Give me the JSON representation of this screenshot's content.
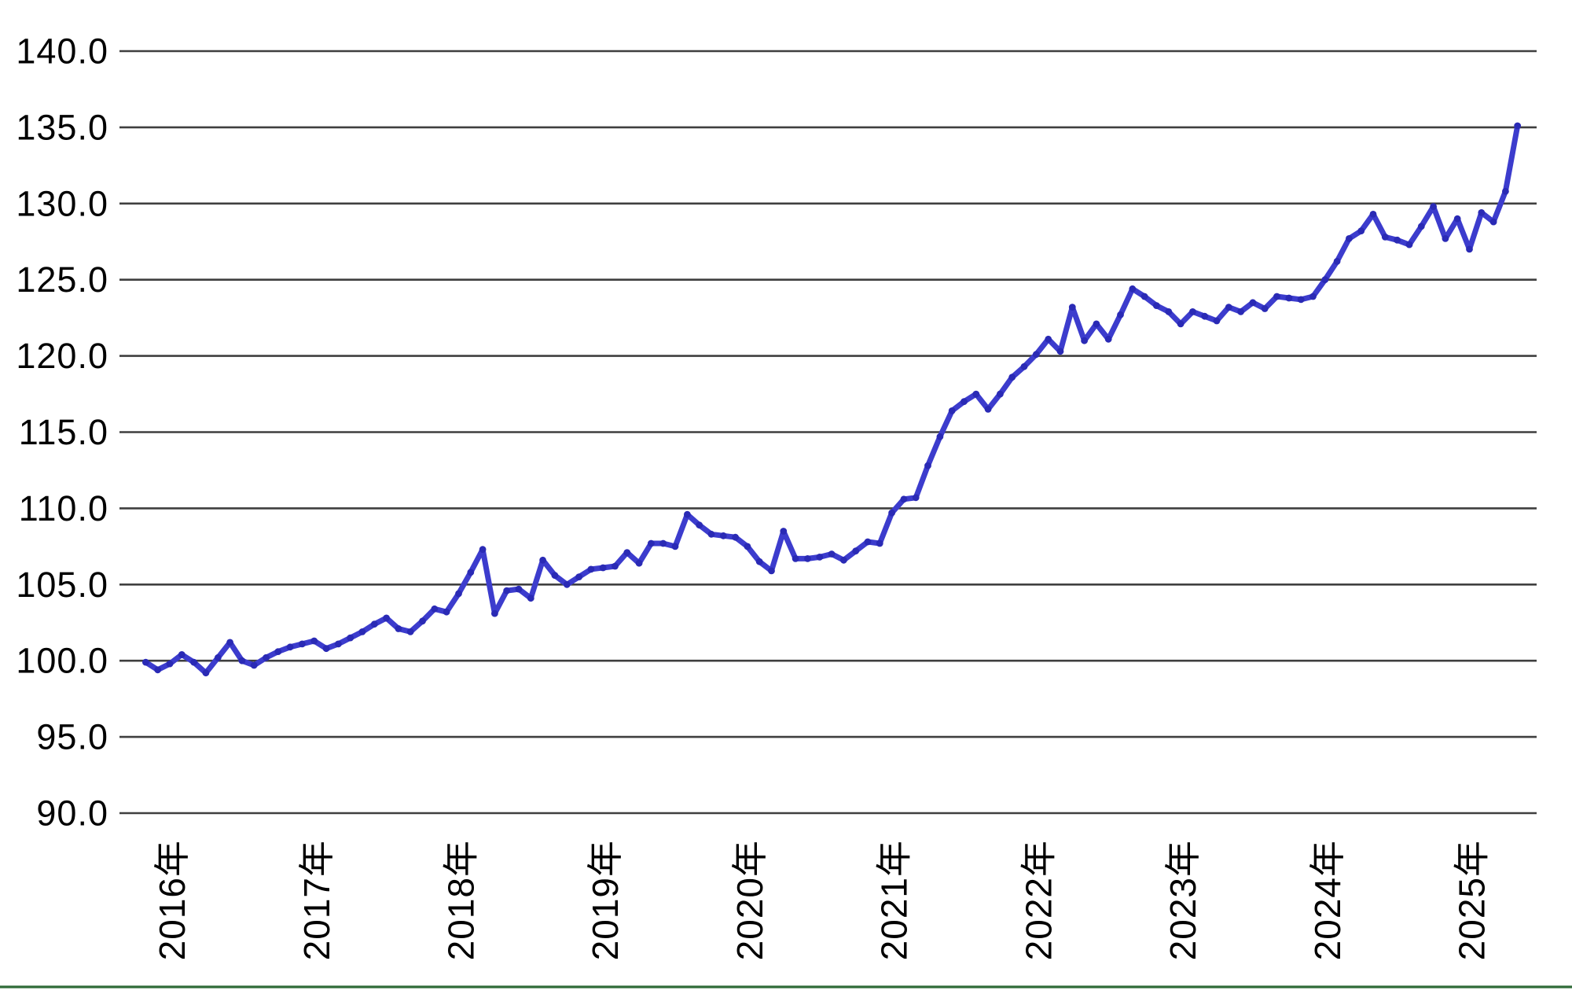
{
  "chart_data": {
    "type": "line",
    "title": "",
    "y_ticks": [
      "140.0",
      "135.0",
      "130.0",
      "125.0",
      "120.0",
      "115.0",
      "110.0",
      "105.0",
      "100.0",
      "95.0",
      "90.0"
    ],
    "ylim": [
      90,
      140
    ],
    "grid": "horizontal",
    "grid_color": "#3f3f3f",
    "legend": "none",
    "x_labels": [
      "2016年",
      "2017年",
      "2018年",
      "2019年",
      "2020年",
      "2021年",
      "2022年",
      "2023年",
      "2024年",
      "2025年"
    ],
    "x_label_month_indices": [
      2,
      14,
      26,
      38,
      50,
      62,
      74,
      86,
      98,
      110
    ],
    "x_frequency": "monthly",
    "series": [
      {
        "name": "index-line",
        "line_color": "#3c3ccd",
        "marker_color": "#2a2ab5",
        "values": [
          99.9,
          99.4,
          99.8,
          100.4,
          99.9,
          99.2,
          100.2,
          101.2,
          100.0,
          99.7,
          100.2,
          100.6,
          100.9,
          101.1,
          101.3,
          100.8,
          101.1,
          101.5,
          101.9,
          102.4,
          102.8,
          102.1,
          101.9,
          102.6,
          103.4,
          103.2,
          104.4,
          105.8,
          107.3,
          103.1,
          104.6,
          104.7,
          104.1,
          106.6,
          105.6,
          105.0,
          105.5,
          106.0,
          106.1,
          106.2,
          107.1,
          106.4,
          107.7,
          107.7,
          107.5,
          109.6,
          108.9,
          108.3,
          108.2,
          108.1,
          107.5,
          106.5,
          105.9,
          108.5,
          106.7,
          106.7,
          106.8,
          107.0,
          106.6,
          107.2,
          107.8,
          107.7,
          109.7,
          110.6,
          110.7,
          112.8,
          114.7,
          116.4,
          117.0,
          117.5,
          116.5,
          117.5,
          118.6,
          119.3,
          120.1,
          121.1,
          120.3,
          123.2,
          121.0,
          122.1,
          121.1,
          122.7,
          124.4,
          123.9,
          123.3,
          122.9,
          122.1,
          122.9,
          122.6,
          122.3,
          123.2,
          122.9,
          123.5,
          123.1,
          123.9,
          123.8,
          123.7,
          123.9,
          125.0,
          126.2,
          127.7,
          128.2,
          129.3,
          127.8,
          127.6,
          127.3,
          128.5,
          129.8,
          127.7,
          129.0,
          127.0,
          129.4,
          128.8,
          130.8,
          135.1
        ]
      }
    ],
    "bottom_border_color": "#2f6b38"
  }
}
